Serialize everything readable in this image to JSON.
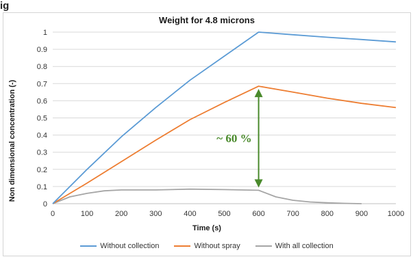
{
  "header": {
    "top_text": "ig"
  },
  "colors": {
    "without_collection": "#5b9bd5",
    "without_spray": "#ed7d31",
    "with_all_collection": "#a5a5a5",
    "annotation": "#4a8a2c",
    "grid": "#d9d9d9"
  },
  "chart_data": {
    "type": "line",
    "title": "Weight for 4.8 microns",
    "xlabel": "Time (s)",
    "ylabel": "Non dimensional concentration (-)",
    "xlim": [
      0,
      1000
    ],
    "ylim": [
      0,
      1
    ],
    "xticks": [
      "0",
      "100",
      "200",
      "300",
      "400",
      "500",
      "600",
      "700",
      "800",
      "900",
      "1000"
    ],
    "yticks": [
      "0",
      "0.1",
      "0.2",
      "0.3",
      "0.4",
      "0.5",
      "0.6",
      "0.7",
      "0.8",
      "0.9",
      "1"
    ],
    "grid": "horizontal",
    "legend_position": "bottom",
    "series": [
      {
        "name": "Without collection",
        "color": "#5b9bd5",
        "x": [
          0,
          100,
          200,
          300,
          400,
          500,
          600,
          700,
          800,
          900,
          1000
        ],
        "y": [
          0,
          0.2,
          0.39,
          0.56,
          0.72,
          0.86,
          1.0,
          0.985,
          0.97,
          0.957,
          0.943
        ]
      },
      {
        "name": "Without spray",
        "color": "#ed7d31",
        "x": [
          0,
          100,
          200,
          300,
          400,
          500,
          600,
          700,
          800,
          900,
          1000
        ],
        "y": [
          0,
          0.12,
          0.245,
          0.37,
          0.49,
          0.59,
          0.685,
          0.65,
          0.615,
          0.585,
          0.56
        ]
      },
      {
        "name": "With all collection",
        "color": "#a5a5a5",
        "x": [
          0,
          50,
          100,
          150,
          200,
          300,
          400,
          500,
          600,
          650,
          700,
          750,
          800,
          850,
          900
        ],
        "y": [
          0,
          0.04,
          0.06,
          0.075,
          0.08,
          0.08,
          0.085,
          0.082,
          0.078,
          0.04,
          0.02,
          0.01,
          0.005,
          0.002,
          0
        ]
      }
    ],
    "annotation": {
      "text": "~ 60 %",
      "x": 600,
      "y_top": 0.685,
      "y_bottom": 0.078
    }
  }
}
